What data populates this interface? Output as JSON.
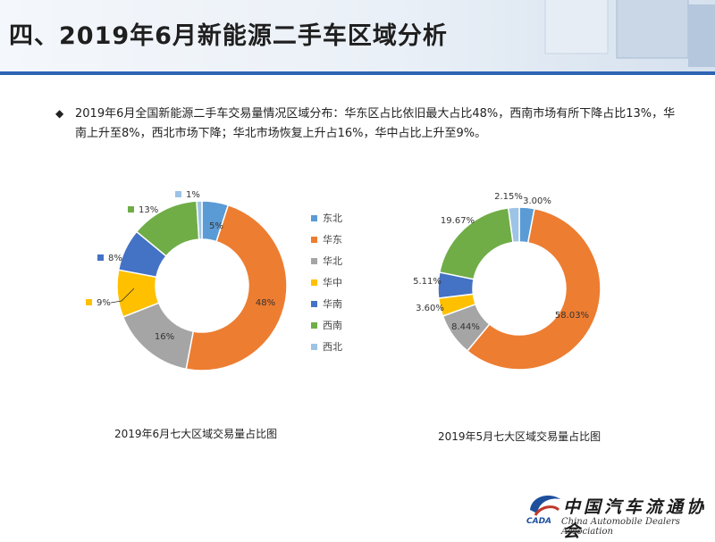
{
  "header": {
    "title": "四、2019年6月新能源二手车区域分析"
  },
  "summary": {
    "bullet": "◆",
    "text": "2019年6月全国新能源二手车交易量情况区域分布：华东区占比依旧最大占比48%，西南市场有所下降占比13%，华南上升至8%，西北市场下降；华北市场恢复上升占16%，华中占比上升至9%。"
  },
  "legend": [
    {
      "name": "东北",
      "color": "#5b9bd5"
    },
    {
      "name": "华东",
      "color": "#ed7d31"
    },
    {
      "name": "华北",
      "color": "#a5a5a5"
    },
    {
      "name": "华中",
      "color": "#ffc000"
    },
    {
      "name": "华南",
      "color": "#4472c4"
    },
    {
      "name": "西南",
      "color": "#70ad47"
    },
    {
      "name": "西北",
      "color": "#9dc3e6"
    }
  ],
  "logo": {
    "cn": "中国汽车流通协会",
    "en": "China Automobile Dealers Association",
    "abbr": "CADA"
  },
  "chart_data": [
    {
      "type": "pie",
      "title": "2019年6月七大区域交易量占比图",
      "categories": [
        "东北",
        "华东",
        "华北",
        "华中",
        "华南",
        "西南",
        "西北"
      ],
      "values": [
        5,
        48,
        16,
        9,
        8,
        13,
        1
      ],
      "labels": [
        "5%",
        "48%",
        "16%",
        "9%",
        "8%",
        "13%",
        "1%"
      ],
      "legend": "right"
    },
    {
      "type": "pie",
      "title": "2019年5月七大区域交易量占比图",
      "categories": [
        "东北",
        "华东",
        "华北",
        "华中",
        "华南",
        "西南",
        "西北"
      ],
      "values": [
        3.0,
        58.03,
        8.44,
        3.6,
        5.11,
        19.67,
        2.15
      ],
      "labels": [
        "3.00%",
        "58.03%",
        "8.44%",
        "3.60%",
        "5.11%",
        "19.67%",
        "2.15%"
      ]
    }
  ]
}
